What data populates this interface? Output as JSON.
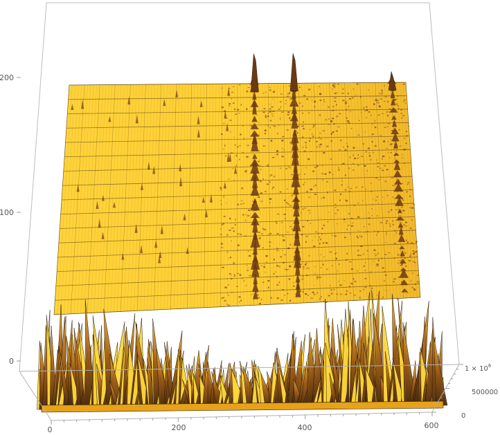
{
  "chart_data": {
    "type": "surface3d",
    "title": "",
    "xlabel": "",
    "ylabel": "",
    "zlabel": "",
    "grid": true,
    "legend": "none",
    "box": true,
    "x_ticks": [
      "0",
      "200",
      "400",
      "600"
    ],
    "x_range": [
      0,
      600
    ],
    "y_ticks": [
      "0",
      "100",
      "200"
    ],
    "y_range": [
      0,
      200
    ],
    "z_ticks": [
      "0",
      "500000",
      "1 × 10"
    ],
    "z_tick_exponent": "6",
    "z_range": [
      0,
      1000000
    ],
    "surface": {
      "baseline_z": 0,
      "description_bands": [
        {
          "x_from": 0,
          "x_to": 600,
          "y_from": 0,
          "y_to": 20,
          "kind": "dense-spikes",
          "approx_peak_z": 1000000
        },
        {
          "x_from": 320,
          "x_to": 340,
          "y_from": 0,
          "y_to": 220,
          "kind": "ridge",
          "approx_peak_z": 900000
        },
        {
          "x_from": 390,
          "x_to": 410,
          "y_from": 0,
          "y_to": 220,
          "kind": "ridge",
          "approx_peak_z": 900000
        },
        {
          "x_from": 560,
          "x_to": 590,
          "y_from": 0,
          "y_to": 220,
          "kind": "ridge",
          "approx_peak_z": 400000
        }
      ]
    },
    "colors": {
      "surface_light": "#ffd83a",
      "surface_mid": "#e8a21a",
      "surface_dark": "#6b3a12",
      "mesh": "#3a2a10",
      "box": "#b8b8b8"
    }
  }
}
